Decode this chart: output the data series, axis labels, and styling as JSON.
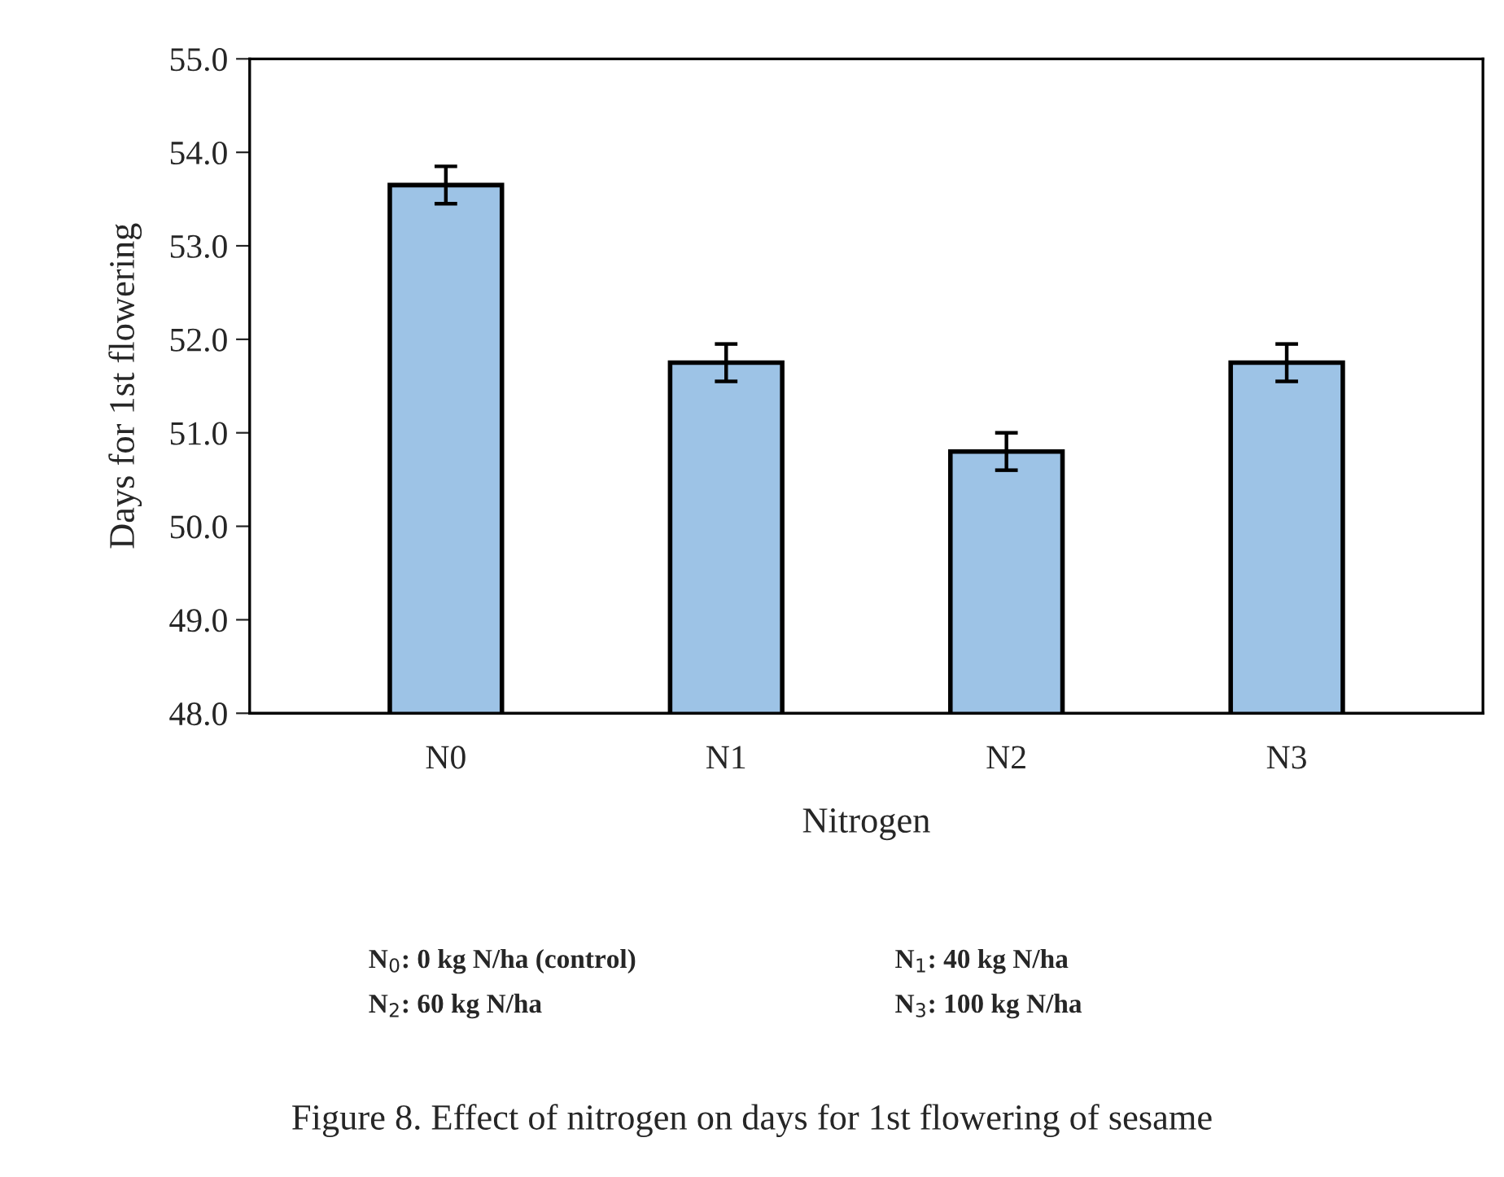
{
  "chart_data": {
    "type": "bar",
    "xlabel": "Nitrogen",
    "ylabel": "Days for 1st flowering",
    "categories": [
      "N0",
      "N1",
      "N2",
      "N3"
    ],
    "values": [
      53.65,
      51.75,
      50.8,
      51.75
    ],
    "errors": [
      0.2,
      0.2,
      0.2,
      0.2
    ],
    "color": "#9dc3e6",
    "ylim": [
      48,
      55
    ],
    "yticks": [
      {
        "value": 48,
        "label": "48.0"
      },
      {
        "value": 49,
        "label": "49.0"
      },
      {
        "value": 50,
        "label": "50.0"
      },
      {
        "value": 51,
        "label": "51.0"
      },
      {
        "value": 52,
        "label": "52.0"
      },
      {
        "value": 53,
        "label": "53.0"
      },
      {
        "value": 54,
        "label": "54.0"
      },
      {
        "value": 55,
        "label": "55.0"
      }
    ],
    "grid": false,
    "legend": false,
    "annotations": [
      "N$_{0}$: 0 kg N/ha (control)",
      "N$_{1}$: 40 kg N/ha",
      "N$_{2}$: 60 kg N/ha",
      "N$_{3}$: 100 kg N/ha",
      "Figure 8. Effect of nitrogen on days for 1st flowering of sesame"
    ]
  }
}
